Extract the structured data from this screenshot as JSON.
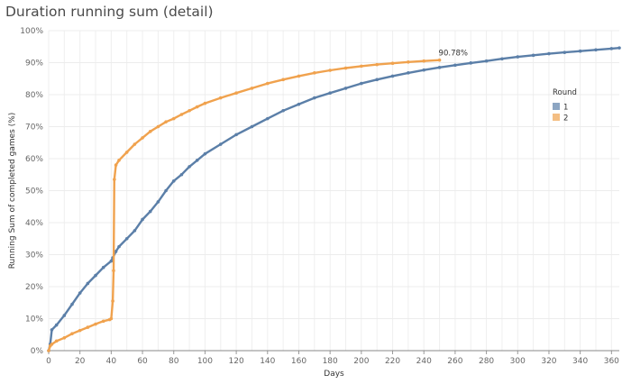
{
  "chart_data": {
    "type": "line",
    "title": "Duration running sum (detail)",
    "xlabel": "Days",
    "ylabel": "Running Sum of completed games (%)",
    "xlim": [
      0,
      365
    ],
    "ylim": [
      0,
      100
    ],
    "x_ticks": [
      0,
      20,
      40,
      60,
      80,
      100,
      120,
      140,
      160,
      180,
      200,
      220,
      240,
      260,
      280,
      300,
      320,
      340,
      360
    ],
    "y_ticks": [
      0,
      10,
      20,
      30,
      40,
      50,
      60,
      70,
      80,
      90,
      100
    ],
    "y_tick_format": "percent",
    "grid": true,
    "legend": {
      "title": "Round",
      "position": "right",
      "entries": [
        {
          "label": "1",
          "color": "#5b7fa8"
        },
        {
          "label": "2",
          "color": "#f0a24e"
        }
      ]
    },
    "annotations": [
      {
        "text": "90.78%",
        "series": "2",
        "x": 250,
        "y": 90.78
      }
    ],
    "series": [
      {
        "name": "1",
        "color": "#5b7fa8",
        "x": [
          0,
          1,
          2,
          5,
          10,
          15,
          20,
          25,
          30,
          35,
          40,
          41,
          43,
          45,
          50,
          55,
          60,
          65,
          70,
          75,
          80,
          85,
          90,
          95,
          100,
          110,
          120,
          130,
          140,
          150,
          160,
          170,
          180,
          190,
          200,
          210,
          220,
          230,
          240,
          250,
          260,
          270,
          280,
          290,
          300,
          310,
          320,
          330,
          340,
          350,
          360,
          365
        ],
        "y": [
          0,
          2,
          6.5,
          8,
          11,
          14.5,
          18,
          21,
          23.5,
          26,
          28,
          29,
          31,
          32.5,
          35,
          37.5,
          41,
          43.5,
          46.5,
          50,
          53,
          55,
          57.5,
          59.5,
          61.5,
          64.5,
          67.5,
          70,
          72.5,
          75,
          77,
          79,
          80.5,
          82,
          83.5,
          84.7,
          85.8,
          86.8,
          87.7,
          88.5,
          89.2,
          89.9,
          90.5,
          91.2,
          91.8,
          92.3,
          92.8,
          93.2,
          93.6,
          94,
          94.4,
          94.6
        ]
      },
      {
        "name": "2",
        "color": "#f0a24e",
        "x": [
          0,
          1,
          2,
          5,
          10,
          15,
          20,
          25,
          30,
          35,
          39,
          40,
          41,
          41.5,
          42,
          43,
          45,
          50,
          55,
          60,
          65,
          70,
          75,
          80,
          85,
          90,
          95,
          100,
          110,
          120,
          130,
          140,
          150,
          160,
          170,
          180,
          190,
          200,
          210,
          220,
          230,
          240,
          250
        ],
        "y": [
          0,
          1.5,
          2,
          3,
          4,
          5.3,
          6.3,
          7.3,
          8.3,
          9.2,
          9.7,
          10,
          15.5,
          25,
          53.5,
          58,
          59.5,
          62,
          64.5,
          66.5,
          68.5,
          70,
          71.5,
          72.5,
          73.8,
          75,
          76.2,
          77.3,
          79,
          80.5,
          82,
          83.5,
          84.7,
          85.8,
          86.8,
          87.6,
          88.3,
          88.9,
          89.4,
          89.8,
          90.2,
          90.5,
          90.78
        ]
      }
    ]
  }
}
